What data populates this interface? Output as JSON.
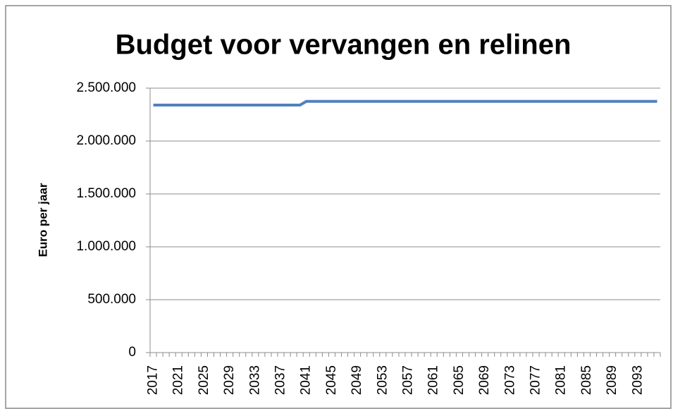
{
  "chart_data": {
    "type": "line",
    "title": "Budget voor vervangen en relinen",
    "y_label": "Euro per jaar",
    "categories": [
      "2017",
      null,
      null,
      null,
      "2021",
      null,
      null,
      null,
      "2025",
      null,
      null,
      null,
      "2029",
      null,
      null,
      null,
      "2033",
      null,
      null,
      null,
      "2037",
      null,
      null,
      null,
      "2041",
      null,
      null,
      null,
      "2045",
      null,
      null,
      null,
      "2049",
      null,
      null,
      null,
      "2053",
      null,
      null,
      null,
      "2057",
      null,
      null,
      null,
      "2061",
      null,
      null,
      null,
      "2065",
      null,
      null,
      null,
      "2069",
      null,
      null,
      null,
      "2073",
      null,
      null,
      null,
      "2077",
      null,
      null,
      null,
      "2081",
      null,
      null,
      null,
      "2085",
      null,
      null,
      null,
      "2089",
      null,
      null,
      null,
      "2093",
      null,
      null,
      null
    ],
    "series": [
      {
        "color": "#4f81bd",
        "values": [
          2340000,
          2340000,
          2340000,
          2340000,
          2340000,
          2340000,
          2340000,
          2340000,
          2340000,
          2340000,
          2340000,
          2340000,
          2340000,
          2340000,
          2340000,
          2340000,
          2340000,
          2340000,
          2340000,
          2340000,
          2340000,
          2340000,
          2340000,
          2340000,
          2375000,
          2375000,
          2375000,
          2375000,
          2375000,
          2375000,
          2375000,
          2375000,
          2375000,
          2375000,
          2375000,
          2375000,
          2375000,
          2375000,
          2375000,
          2375000,
          2375000,
          2375000,
          2375000,
          2375000,
          2375000,
          2375000,
          2375000,
          2375000,
          2375000,
          2375000,
          2375000,
          2375000,
          2375000,
          2375000,
          2375000,
          2375000,
          2375000,
          2375000,
          2375000,
          2375000,
          2375000,
          2375000,
          2375000,
          2375000,
          2375000,
          2375000,
          2375000,
          2375000,
          2375000,
          2375000,
          2375000,
          2375000,
          2375000,
          2375000,
          2375000,
          2375000,
          2375000,
          2375000,
          2375000,
          2375000
        ]
      }
    ],
    "ylim": [
      0,
      2500000
    ],
    "yticks": [
      0,
      {
        "value": 500000,
        "label": "500.000"
      },
      {
        "value": 1000000,
        "label": "1.000.000"
      },
      {
        "value": 1500000,
        "label": "1.500.000"
      },
      {
        "value": 2000000,
        "label": "2.000.000"
      },
      {
        "value": 2500000,
        "label": "2.500.000"
      }
    ],
    "grid": true
  }
}
